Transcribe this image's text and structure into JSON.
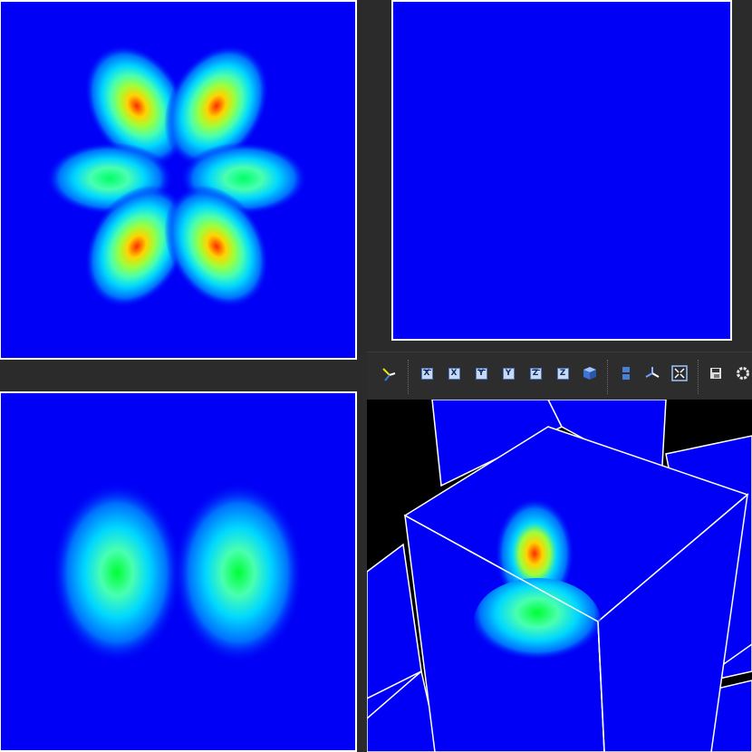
{
  "colors": {
    "background": "#0000f6",
    "frame": "#ffffff",
    "divider": "#2b2b2b",
    "toolbar": "#2d2d2d",
    "colormap": [
      "#0000f6",
      "#0070ff",
      "#00d7ff",
      "#49ffb0",
      "#9cff3c",
      "#ffd400",
      "#ff2a00"
    ]
  },
  "views": [
    {
      "name": "view-top-left",
      "content": "six-lobe-contour"
    },
    {
      "name": "view-top-right",
      "content": "empty"
    },
    {
      "name": "view-bottom-left",
      "content": "two-lobe-contour"
    },
    {
      "name": "view-3d",
      "content": "cube-with-slice"
    }
  ],
  "toolbar": {
    "buttons": [
      {
        "name": "pick-tool-button",
        "icon": "cursor-axes-icon"
      },
      {
        "name": "view-plus-x-button",
        "icon": "x-axis-icon",
        "label": "X"
      },
      {
        "name": "view-minus-x-button",
        "icon": "x-axis-icon",
        "label": "X"
      },
      {
        "name": "view-plus-y-button",
        "icon": "y-axis-icon",
        "label": "Y"
      },
      {
        "name": "view-minus-y-button",
        "icon": "y-axis-icon",
        "label": "Y"
      },
      {
        "name": "view-plus-z-button",
        "icon": "z-axis-icon",
        "label": "Z"
      },
      {
        "name": "view-minus-z-button",
        "icon": "z-axis-icon",
        "label": "Z"
      },
      {
        "name": "view-iso-button",
        "icon": "cube-icon"
      },
      {
        "name": "split-layout-button",
        "icon": "split-view-icon"
      },
      {
        "name": "orientation-axes-button",
        "icon": "axes-triad-icon"
      },
      {
        "name": "reset-camera-button",
        "icon": "fit-to-view-icon"
      },
      {
        "name": "screenshot-button",
        "icon": "save-screenshot-icon"
      },
      {
        "name": "settings-button",
        "icon": "gear-icon"
      }
    ]
  }
}
